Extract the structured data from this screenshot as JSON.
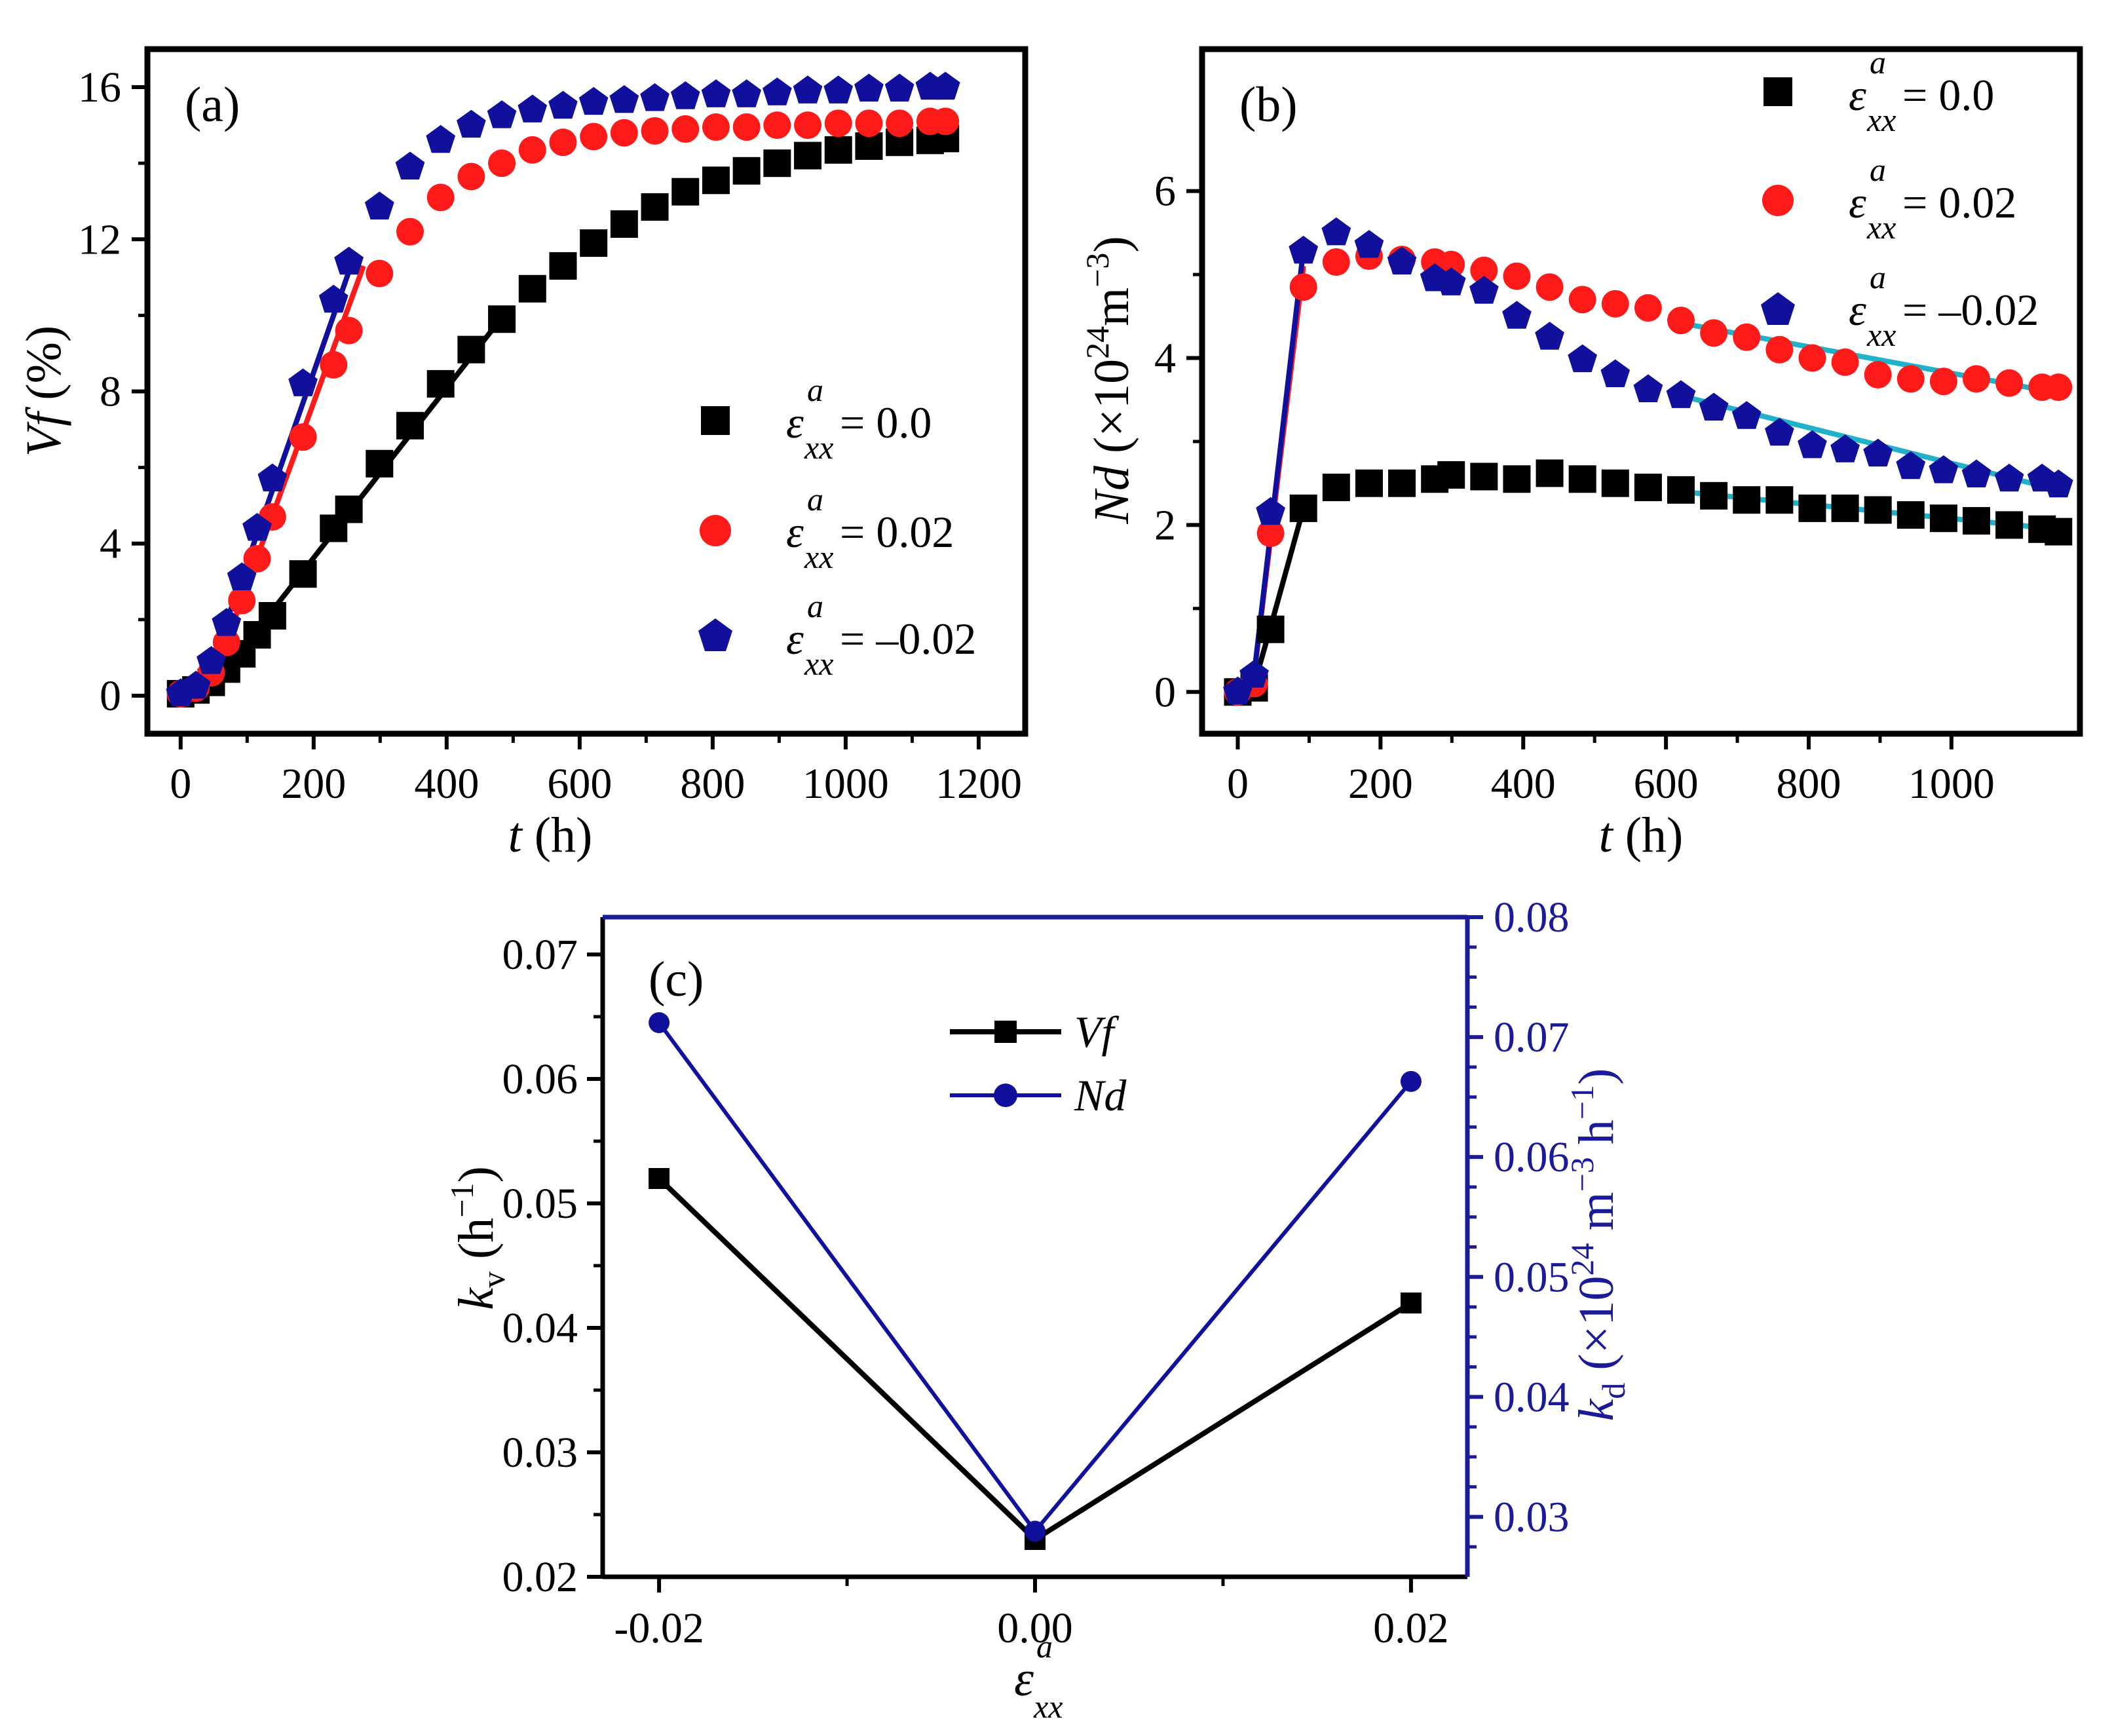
{
  "colors": {
    "black": "#000000",
    "red": "#ff1a1a",
    "blue": "#10109c",
    "cyan": "#20b2c8",
    "navy": "#1b1b9a"
  },
  "chart_data": [
    {
      "id": "a",
      "type": "scatter",
      "panel_label": "(a)",
      "xlabel": {
        "var": "t",
        "unit": " (h)"
      },
      "ylabel": {
        "var": "Vf",
        "unit": " (%)"
      },
      "xlim": [
        -50,
        1270
      ],
      "ylim": [
        -1.0,
        17.0
      ],
      "xticks": [
        0,
        200,
        400,
        600,
        800,
        1000,
        1200
      ],
      "yticks": [
        0,
        4,
        8,
        12,
        16
      ],
      "legend": {
        "position": "right",
        "var": "ε",
        "superscript": "a",
        "subscript": "xx",
        "labels": [
          "= 0.0",
          "= 0.02",
          "= –0.02"
        ]
      },
      "series": [
        {
          "name": "0.0",
          "marker": "square",
          "color": "#000000",
          "x": [
            0,
            23,
            46,
            69,
            92,
            115,
            138,
            184,
            230,
            253,
            299,
            345,
            391,
            437,
            483,
            529,
            575,
            621,
            667,
            713,
            759,
            805,
            851,
            897,
            943,
            989,
            1035,
            1081,
            1127,
            1150
          ],
          "y": [
            0.05,
            0.15,
            0.35,
            0.7,
            1.1,
            1.6,
            2.1,
            3.2,
            4.4,
            4.9,
            6.1,
            7.1,
            8.2,
            9.1,
            9.9,
            10.7,
            11.3,
            11.9,
            12.4,
            12.85,
            13.25,
            13.55,
            13.8,
            14.0,
            14.2,
            14.35,
            14.45,
            14.55,
            14.6,
            14.65
          ]
        },
        {
          "name": "0.02",
          "marker": "circle",
          "color": "#ff1a1a",
          "x": [
            0,
            23,
            46,
            69,
            92,
            115,
            138,
            184,
            230,
            253,
            299,
            345,
            391,
            437,
            483,
            529,
            575,
            621,
            667,
            713,
            759,
            805,
            851,
            897,
            943,
            989,
            1035,
            1081,
            1127,
            1150
          ],
          "y": [
            0.05,
            0.2,
            0.6,
            1.4,
            2.5,
            3.6,
            4.7,
            6.8,
            8.7,
            9.6,
            11.1,
            12.2,
            13.1,
            13.65,
            14.0,
            14.35,
            14.55,
            14.7,
            14.8,
            14.85,
            14.9,
            14.95,
            14.95,
            15.0,
            15.0,
            15.05,
            15.05,
            15.05,
            15.1,
            15.1
          ]
        },
        {
          "name": "-0.02",
          "marker": "pentagon",
          "color": "#10109c",
          "x": [
            0,
            23,
            46,
            69,
            92,
            115,
            138,
            184,
            230,
            253,
            299,
            345,
            391,
            437,
            483,
            529,
            575,
            621,
            667,
            713,
            759,
            805,
            851,
            897,
            943,
            989,
            1035,
            1081,
            1127,
            1150
          ],
          "y": [
            0.05,
            0.25,
            0.9,
            1.9,
            3.1,
            4.4,
            5.7,
            8.2,
            10.4,
            11.4,
            12.85,
            13.9,
            14.6,
            15.0,
            15.25,
            15.4,
            15.5,
            15.6,
            15.65,
            15.7,
            15.75,
            15.8,
            15.8,
            15.85,
            15.9,
            15.9,
            15.95,
            15.95,
            16.0,
            16.0
          ]
        }
      ],
      "fit_lines": [
        {
          "color": "#000000",
          "x": [
            60,
            490
          ],
          "y": [
            0.5,
            10.1
          ]
        },
        {
          "color": "#ff1a1a",
          "x": [
            60,
            275
          ],
          "y": [
            1.0,
            11.3
          ]
        },
        {
          "color": "#10109c",
          "x": [
            60,
            262
          ],
          "y": [
            1.5,
            11.6
          ]
        }
      ]
    },
    {
      "id": "b",
      "type": "scatter",
      "panel_label": "(b)",
      "xlabel": {
        "var": "t",
        "unit": " (h)"
      },
      "ylabel": {
        "var": "Nd",
        "unit": " (×10",
        "exp": "24",
        "unit2": "m",
        "exp2": "−3",
        "close": ")"
      },
      "xlim": [
        -50,
        1180
      ],
      "ylim": [
        -0.5,
        7.7
      ],
      "xticks": [
        0,
        200,
        400,
        600,
        800,
        1000
      ],
      "yticks": [
        0,
        2,
        4,
        6
      ],
      "legend": {
        "position": "top-right",
        "var": "ε",
        "superscript": "a",
        "subscript": "xx",
        "labels": [
          "= 0.0",
          "= 0.02",
          "= –0.02"
        ]
      },
      "series": [
        {
          "name": "0.0",
          "marker": "square",
          "color": "#000000",
          "x": [
            0,
            23,
            46,
            92,
            138,
            184,
            230,
            276,
            299,
            345,
            391,
            437,
            483,
            529,
            575,
            621,
            667,
            713,
            759,
            805,
            851,
            897,
            943,
            989,
            1035,
            1081,
            1127,
            1150
          ],
          "y": [
            0.0,
            0.05,
            0.75,
            2.2,
            2.45,
            2.5,
            2.5,
            2.55,
            2.6,
            2.58,
            2.55,
            2.62,
            2.55,
            2.5,
            2.45,
            2.42,
            2.35,
            2.3,
            2.3,
            2.2,
            2.2,
            2.18,
            2.12,
            2.08,
            2.05,
            2.0,
            1.95,
            1.92
          ]
        },
        {
          "name": "0.02",
          "marker": "circle",
          "color": "#ff1a1a",
          "x": [
            0,
            23,
            46,
            92,
            138,
            184,
            230,
            276,
            299,
            345,
            391,
            437,
            483,
            529,
            575,
            621,
            667,
            713,
            759,
            805,
            851,
            897,
            943,
            989,
            1035,
            1081,
            1127,
            1150
          ],
          "y": [
            0.0,
            0.1,
            1.9,
            4.85,
            5.15,
            5.22,
            5.18,
            5.15,
            5.12,
            5.05,
            4.98,
            4.85,
            4.7,
            4.65,
            4.6,
            4.45,
            4.3,
            4.25,
            4.1,
            4.0,
            3.95,
            3.8,
            3.75,
            3.72,
            3.75,
            3.7,
            3.65,
            3.65
          ]
        },
        {
          "name": "-0.02",
          "marker": "pentagon",
          "color": "#10109c",
          "x": [
            0,
            23,
            46,
            92,
            138,
            184,
            230,
            276,
            299,
            345,
            391,
            437,
            483,
            529,
            575,
            621,
            667,
            713,
            759,
            805,
            851,
            897,
            943,
            989,
            1035,
            1081,
            1127,
            1150
          ],
          "y": [
            0.0,
            0.2,
            2.15,
            5.28,
            5.5,
            5.35,
            5.15,
            4.95,
            4.9,
            4.8,
            4.5,
            4.25,
            3.98,
            3.8,
            3.62,
            3.55,
            3.4,
            3.3,
            3.1,
            2.95,
            2.9,
            2.85,
            2.7,
            2.65,
            2.6,
            2.55,
            2.55,
            2.48
          ]
        }
      ],
      "fit_lines": [
        {
          "color": "#000000",
          "x": [
            20,
            50,
            92
          ],
          "y": [
            0.0,
            0.9,
            2.2
          ]
        },
        {
          "color": "#ff1a1a",
          "x": [
            20,
            92
          ],
          "y": [
            0.0,
            5.1
          ]
        },
        {
          "color": "#10109c",
          "x": [
            20,
            92
          ],
          "y": [
            0.0,
            5.3
          ]
        },
        {
          "color": "#20b2c8",
          "x": [
            620,
            1150
          ],
          "y": [
            4.42,
            3.58
          ]
        },
        {
          "color": "#20b2c8",
          "x": [
            620,
            1150
          ],
          "y": [
            3.55,
            2.42
          ]
        },
        {
          "color": "#20b2c8",
          "x": [
            620,
            1150
          ],
          "y": [
            2.4,
            1.95
          ]
        }
      ]
    },
    {
      "id": "c",
      "type": "line",
      "panel_label": "(c)",
      "xlabel": {
        "var": "ε",
        "superscript": "a",
        "subscript": "xx"
      },
      "ylabel": {
        "var": "k",
        "sub": "v",
        "unit": " (h",
        "exp": "−1",
        "close": ")"
      },
      "y2label": {
        "var": "k",
        "sub": "d",
        "unit": " (×10",
        "exp": "24",
        "unit2": " m",
        "exp2": "−3",
        "unit3": " h",
        "exp3": "−1",
        "close": ")"
      },
      "categories": [
        "-0.02",
        "0.00",
        "0.02"
      ],
      "xvalues": [
        -0.02,
        0.0,
        0.02
      ],
      "xlim": [
        -0.023,
        0.023
      ],
      "ylim": [
        0.02,
        0.073
      ],
      "y2lim": [
        0.025,
        0.08
      ],
      "yticks": [
        "0.02",
        "0.03",
        "0.04",
        "0.05",
        "0.06",
        "0.07"
      ],
      "y2ticks": [
        "0.03",
        "0.04",
        "0.05",
        "0.06",
        "0.07",
        "0.08"
      ],
      "legend": {
        "position": "top-center",
        "labels": [
          "Vf",
          "Nd"
        ]
      },
      "series": [
        {
          "name": "Vf",
          "axis": "left",
          "marker": "square",
          "color": "#000000",
          "values": [
            0.052,
            0.023,
            0.042
          ]
        },
        {
          "name": "Nd",
          "axis": "right",
          "marker": "circle",
          "color": "#10109c",
          "values": [
            0.0712,
            0.0288,
            0.0663
          ]
        }
      ]
    }
  ]
}
